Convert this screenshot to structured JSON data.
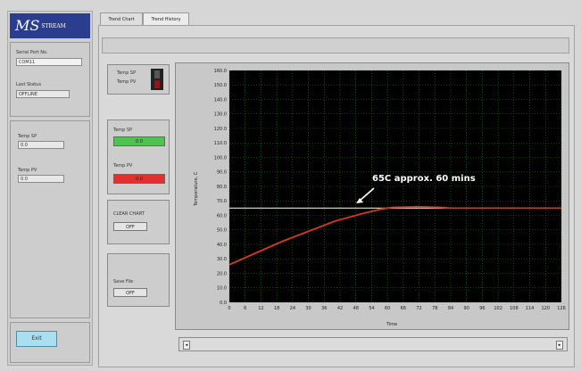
{
  "logo": {
    "text": "MS",
    "sub": "STREAM EQUIPMENT"
  },
  "left_panel": {
    "serial_port_label": "Serial Port No.",
    "serial_port_value": "COM11",
    "last_status_label": "Last Status",
    "last_status_value": "OFFLINE",
    "temp1_label": "Temp SP",
    "temp1_value": "0.0",
    "temp2_label": "Temp PV",
    "temp2_value": "0.0",
    "exit_label": "Exit"
  },
  "tabs": [
    {
      "label": "Trend Chart"
    },
    {
      "label": "Trend History"
    }
  ],
  "legend_box": {
    "item1": "Temp SP",
    "item2": "Temp PV"
  },
  "indicators": {
    "sp_label": "Temp SP",
    "sp_value": "0.0",
    "pv_label": "Temp PV",
    "pv_value": "0.0",
    "sp_color": "#4fc24f",
    "pv_color": "#e03030"
  },
  "clear_chart": {
    "label": "CLEAR CHART",
    "button": "OFF"
  },
  "save_file": {
    "label": "Save File",
    "button": "OFF"
  },
  "chart_data": {
    "type": "line",
    "ylabel": "Temperature, C",
    "xlabel": "Time",
    "ylim": [
      0,
      160
    ],
    "xlim": [
      0,
      126
    ],
    "yticks": [
      "0.0",
      "10.0",
      "20.0",
      "30.0",
      "40.0",
      "50.0",
      "60.0",
      "70.0",
      "80.0",
      "90.0",
      "100.0",
      "110.0",
      "120.0",
      "130.0",
      "140.0",
      "150.0",
      "160.0"
    ],
    "xticks": [
      "0",
      "6",
      "12",
      "18",
      "24",
      "30",
      "36",
      "42",
      "48",
      "54",
      "60",
      "66",
      "72",
      "78",
      "84",
      "90",
      "96",
      "102",
      "108",
      "114",
      "120",
      "126"
    ],
    "annotation": "65C approx. 60 mins",
    "series": [
      {
        "color": "#c9d98a",
        "values": [
          [
            0,
            65
          ],
          [
            126,
            65
          ]
        ]
      },
      {
        "color": "#d43a1a",
        "values": [
          [
            0,
            26
          ],
          [
            10,
            34
          ],
          [
            20,
            42
          ],
          [
            30,
            49
          ],
          [
            40,
            56
          ],
          [
            50,
            61
          ],
          [
            58,
            64.5
          ],
          [
            62,
            65.5
          ],
          [
            72,
            66
          ],
          [
            80,
            65.5
          ],
          [
            84,
            65
          ],
          [
            126,
            65
          ]
        ]
      }
    ],
    "grid": true,
    "background": "#000000"
  }
}
